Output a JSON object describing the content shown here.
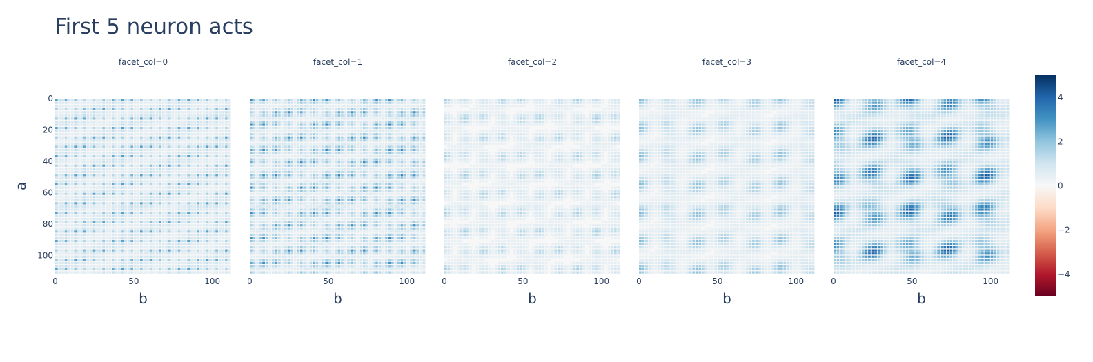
{
  "chart_data": {
    "type": "heatmap",
    "title": "First 5 neuron acts",
    "xlabel": "b",
    "ylabel": "a",
    "xlim": [
      0,
      112
    ],
    "ylim": [
      0,
      112
    ],
    "x_ticks": [
      "0",
      "50",
      "100"
    ],
    "y_ticks": [
      "0",
      "20",
      "40",
      "60",
      "80",
      "100"
    ],
    "facets": [
      {
        "label": "facet_col=0",
        "period": 3,
        "intensity": 0.55
      },
      {
        "label": "facet_col=1",
        "period": 4,
        "intensity": 0.65
      },
      {
        "label": "facet_col=2",
        "period": 6,
        "intensity": 0.35
      },
      {
        "label": "facet_col=3",
        "period": 9,
        "intensity": 0.45
      },
      {
        "label": "facet_col=4",
        "period": 12,
        "intensity": 0.85
      }
    ],
    "colorbar": {
      "range": [
        -5,
        5
      ],
      "ticks": [
        "4",
        "2",
        "0",
        "−2",
        "−4"
      ],
      "colorscale": [
        "#67001f",
        "#b2182b",
        "#d6604d",
        "#f4a582",
        "#fddbc7",
        "#f7f7f7",
        "#d1e5f0",
        "#92c5de",
        "#4393c3",
        "#2166ac",
        "#053061"
      ]
    }
  }
}
